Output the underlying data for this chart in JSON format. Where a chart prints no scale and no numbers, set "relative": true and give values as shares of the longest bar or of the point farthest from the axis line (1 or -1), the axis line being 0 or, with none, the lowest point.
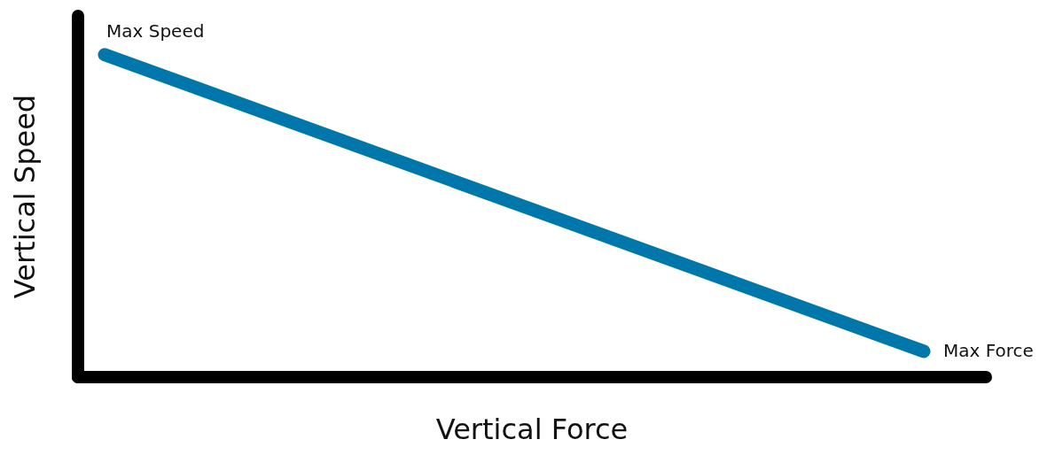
{
  "chart_data": {
    "type": "line",
    "relative": true,
    "categories": [
      null,
      null
    ],
    "xlabel": "Vertical Force",
    "ylabel": "Vertical Speed",
    "series": [
      {
        "color": "#0077aa",
        "values": [
          1,
          0.08
        ]
      }
    ],
    "annotations": [
      "Max Speed",
      "Max Force"
    ],
    "grid": false,
    "legend": false,
    "marker": "none",
    "line_style": "solid"
  }
}
